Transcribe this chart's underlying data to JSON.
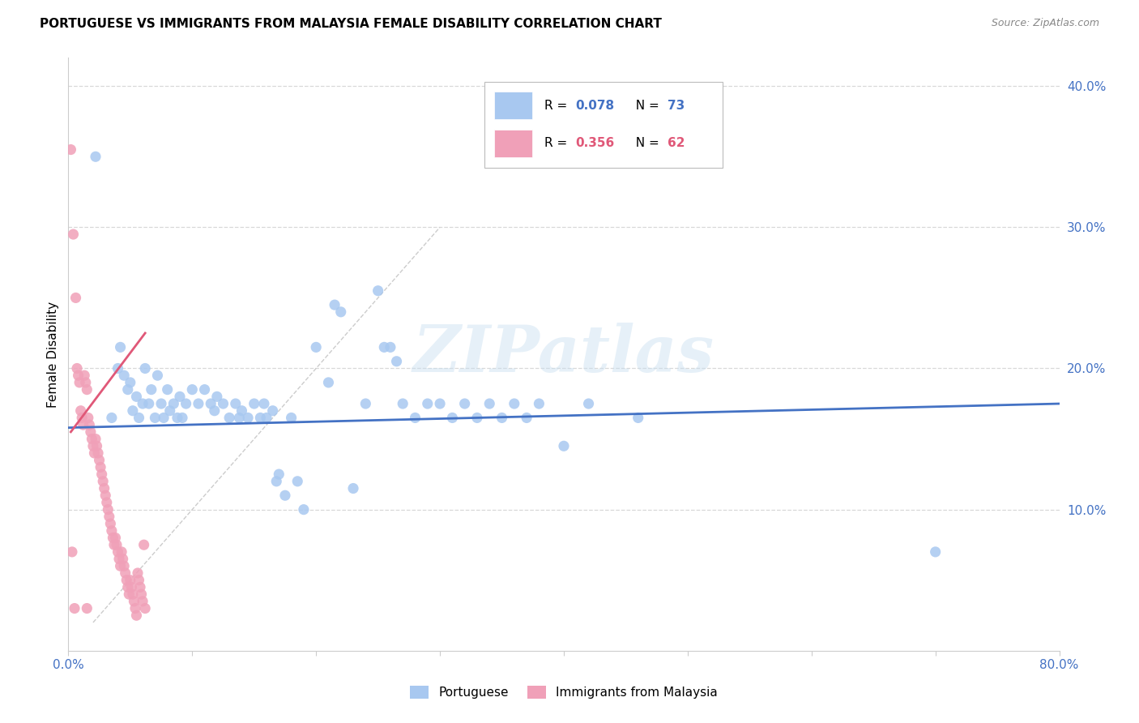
{
  "title": "PORTUGUESE VS IMMIGRANTS FROM MALAYSIA FEMALE DISABILITY CORRELATION CHART",
  "source": "Source: ZipAtlas.com",
  "ylabel": "Female Disability",
  "watermark": "ZIPatlas",
  "xlim": [
    0.0,
    0.8
  ],
  "ylim": [
    0.0,
    0.42
  ],
  "xtick_positions": [
    0.0,
    0.1,
    0.2,
    0.3,
    0.4,
    0.5,
    0.6,
    0.7,
    0.8
  ],
  "xtick_labels": [
    "0.0%",
    "",
    "",
    "",
    "",
    "",
    "",
    "",
    "80.0%"
  ],
  "yticks_right": [
    0.1,
    0.2,
    0.3,
    0.4
  ],
  "ytick_labels_right": [
    "10.0%",
    "20.0%",
    "30.0%",
    "40.0%"
  ],
  "blue_scatter_color": "#a8c8f0",
  "pink_scatter_color": "#f0a0b8",
  "blue_line_color": "#4472c4",
  "pink_line_color": "#e05878",
  "diag_line_color": "#cccccc",
  "portuguese_points": [
    [
      0.022,
      0.35
    ],
    [
      0.035,
      0.165
    ],
    [
      0.04,
      0.2
    ],
    [
      0.042,
      0.215
    ],
    [
      0.045,
      0.195
    ],
    [
      0.048,
      0.185
    ],
    [
      0.05,
      0.19
    ],
    [
      0.052,
      0.17
    ],
    [
      0.055,
      0.18
    ],
    [
      0.057,
      0.165
    ],
    [
      0.06,
      0.175
    ],
    [
      0.062,
      0.2
    ],
    [
      0.065,
      0.175
    ],
    [
      0.067,
      0.185
    ],
    [
      0.07,
      0.165
    ],
    [
      0.072,
      0.195
    ],
    [
      0.075,
      0.175
    ],
    [
      0.077,
      0.165
    ],
    [
      0.08,
      0.185
    ],
    [
      0.082,
      0.17
    ],
    [
      0.085,
      0.175
    ],
    [
      0.088,
      0.165
    ],
    [
      0.09,
      0.18
    ],
    [
      0.092,
      0.165
    ],
    [
      0.095,
      0.175
    ],
    [
      0.1,
      0.185
    ],
    [
      0.105,
      0.175
    ],
    [
      0.11,
      0.185
    ],
    [
      0.115,
      0.175
    ],
    [
      0.118,
      0.17
    ],
    [
      0.12,
      0.18
    ],
    [
      0.125,
      0.175
    ],
    [
      0.13,
      0.165
    ],
    [
      0.135,
      0.175
    ],
    [
      0.138,
      0.165
    ],
    [
      0.14,
      0.17
    ],
    [
      0.145,
      0.165
    ],
    [
      0.15,
      0.175
    ],
    [
      0.155,
      0.165
    ],
    [
      0.158,
      0.175
    ],
    [
      0.16,
      0.165
    ],
    [
      0.165,
      0.17
    ],
    [
      0.168,
      0.12
    ],
    [
      0.17,
      0.125
    ],
    [
      0.175,
      0.11
    ],
    [
      0.18,
      0.165
    ],
    [
      0.185,
      0.12
    ],
    [
      0.19,
      0.1
    ],
    [
      0.2,
      0.215
    ],
    [
      0.21,
      0.19
    ],
    [
      0.215,
      0.245
    ],
    [
      0.22,
      0.24
    ],
    [
      0.23,
      0.115
    ],
    [
      0.24,
      0.175
    ],
    [
      0.25,
      0.255
    ],
    [
      0.255,
      0.215
    ],
    [
      0.26,
      0.215
    ],
    [
      0.265,
      0.205
    ],
    [
      0.27,
      0.175
    ],
    [
      0.28,
      0.165
    ],
    [
      0.29,
      0.175
    ],
    [
      0.3,
      0.175
    ],
    [
      0.31,
      0.165
    ],
    [
      0.32,
      0.175
    ],
    [
      0.33,
      0.165
    ],
    [
      0.34,
      0.175
    ],
    [
      0.35,
      0.165
    ],
    [
      0.36,
      0.175
    ],
    [
      0.37,
      0.165
    ],
    [
      0.38,
      0.175
    ],
    [
      0.4,
      0.145
    ],
    [
      0.42,
      0.175
    ],
    [
      0.46,
      0.165
    ],
    [
      0.7,
      0.07
    ]
  ],
  "malaysia_points": [
    [
      0.002,
      0.355
    ],
    [
      0.004,
      0.295
    ],
    [
      0.006,
      0.25
    ],
    [
      0.007,
      0.2
    ],
    [
      0.008,
      0.195
    ],
    [
      0.009,
      0.19
    ],
    [
      0.01,
      0.17
    ],
    [
      0.011,
      0.165
    ],
    [
      0.012,
      0.16
    ],
    [
      0.013,
      0.195
    ],
    [
      0.014,
      0.19
    ],
    [
      0.015,
      0.185
    ],
    [
      0.016,
      0.165
    ],
    [
      0.017,
      0.16
    ],
    [
      0.018,
      0.155
    ],
    [
      0.019,
      0.15
    ],
    [
      0.02,
      0.145
    ],
    [
      0.021,
      0.14
    ],
    [
      0.022,
      0.15
    ],
    [
      0.023,
      0.145
    ],
    [
      0.024,
      0.14
    ],
    [
      0.025,
      0.135
    ],
    [
      0.026,
      0.13
    ],
    [
      0.027,
      0.125
    ],
    [
      0.028,
      0.12
    ],
    [
      0.029,
      0.115
    ],
    [
      0.03,
      0.11
    ],
    [
      0.031,
      0.105
    ],
    [
      0.032,
      0.1
    ],
    [
      0.033,
      0.095
    ],
    [
      0.034,
      0.09
    ],
    [
      0.035,
      0.085
    ],
    [
      0.036,
      0.08
    ],
    [
      0.037,
      0.075
    ],
    [
      0.038,
      0.08
    ],
    [
      0.039,
      0.075
    ],
    [
      0.04,
      0.07
    ],
    [
      0.041,
      0.065
    ],
    [
      0.042,
      0.06
    ],
    [
      0.043,
      0.07
    ],
    [
      0.044,
      0.065
    ],
    [
      0.045,
      0.06
    ],
    [
      0.046,
      0.055
    ],
    [
      0.047,
      0.05
    ],
    [
      0.048,
      0.045
    ],
    [
      0.049,
      0.04
    ],
    [
      0.05,
      0.05
    ],
    [
      0.051,
      0.045
    ],
    [
      0.052,
      0.04
    ],
    [
      0.053,
      0.035
    ],
    [
      0.054,
      0.03
    ],
    [
      0.055,
      0.025
    ],
    [
      0.056,
      0.055
    ],
    [
      0.057,
      0.05
    ],
    [
      0.058,
      0.045
    ],
    [
      0.059,
      0.04
    ],
    [
      0.06,
      0.035
    ],
    [
      0.061,
      0.075
    ],
    [
      0.062,
      0.03
    ],
    [
      0.003,
      0.07
    ],
    [
      0.005,
      0.03
    ],
    [
      0.015,
      0.03
    ]
  ],
  "blue_trend_x": [
    0.0,
    0.8
  ],
  "blue_trend_y": [
    0.158,
    0.175
  ],
  "pink_trend_x": [
    0.002,
    0.062
  ],
  "pink_trend_y": [
    0.155,
    0.225
  ],
  "diag_trend_x": [
    0.02,
    0.3
  ],
  "diag_trend_y": [
    0.02,
    0.3
  ],
  "background_color": "#ffffff",
  "grid_color": "#d8d8d8",
  "spine_color": "#cccccc"
}
